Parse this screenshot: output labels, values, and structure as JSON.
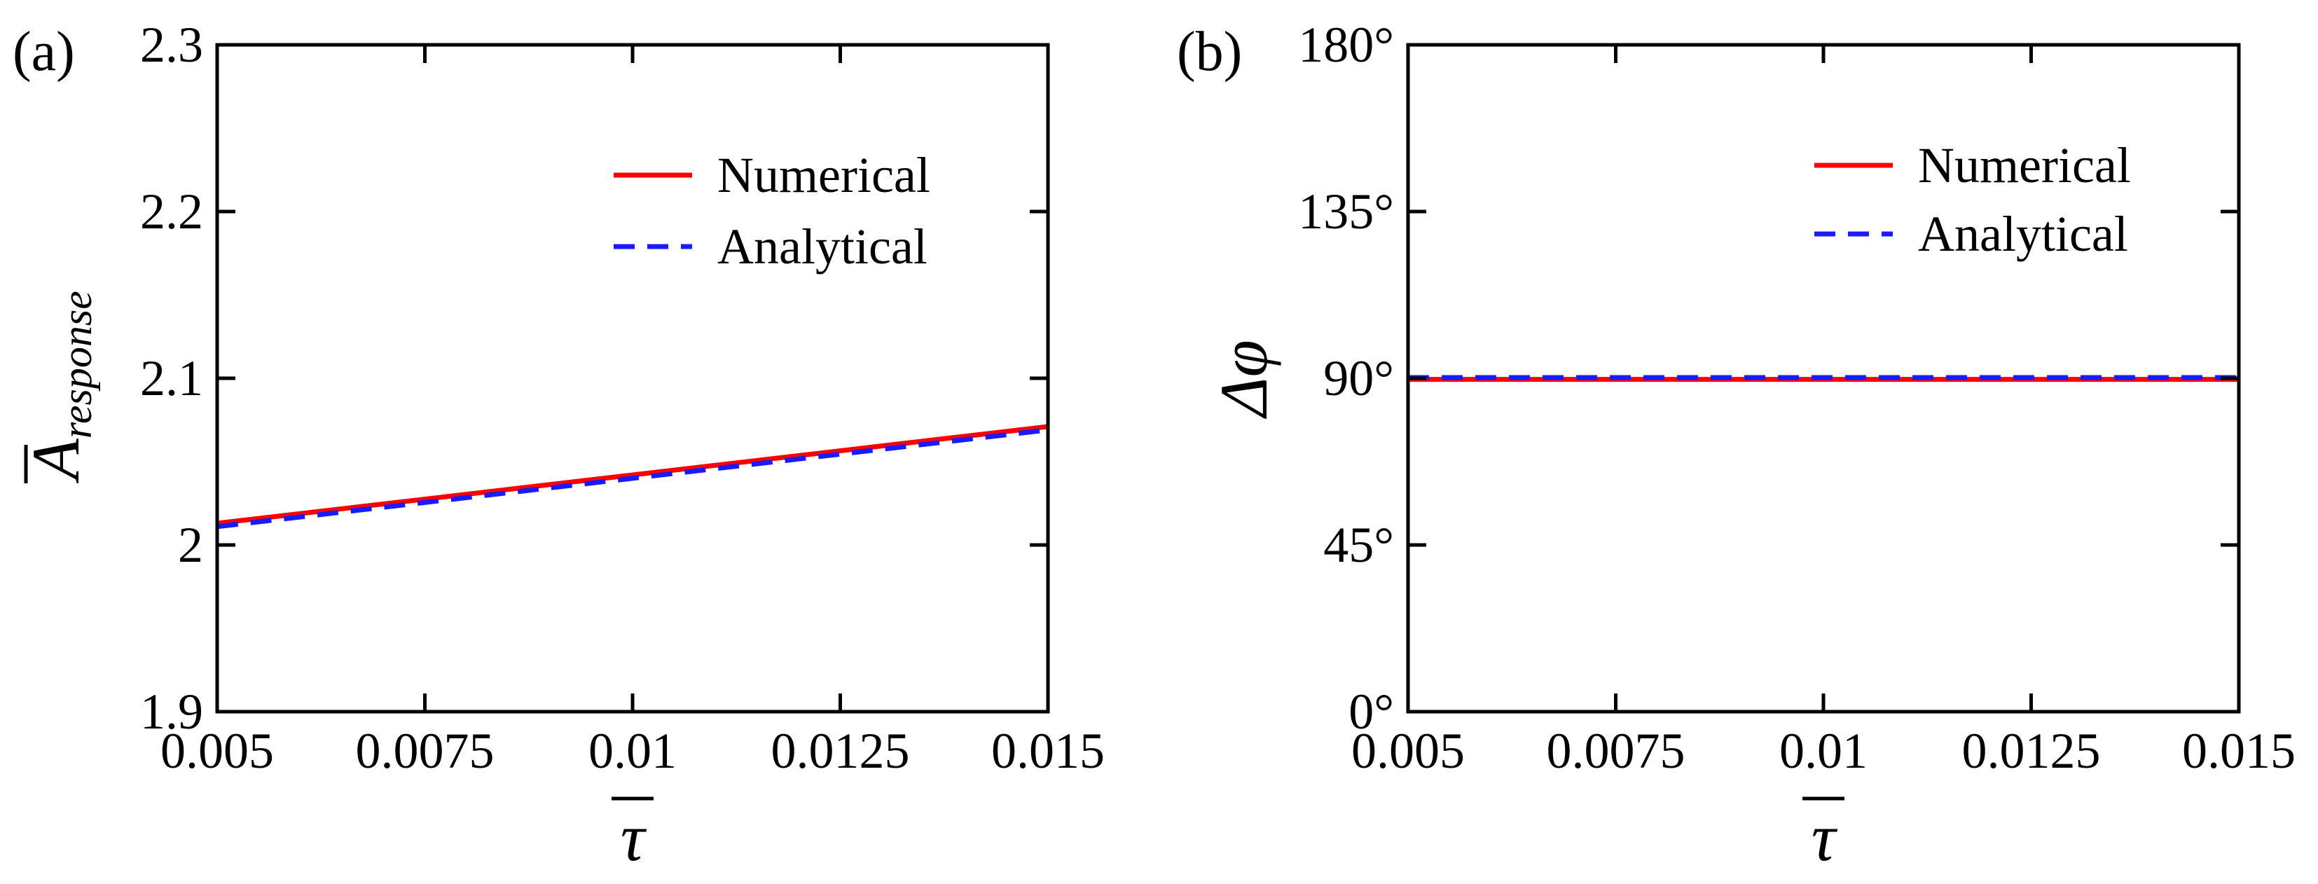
{
  "chart_data": [
    {
      "panel_label": "(a)",
      "type": "line",
      "xlabel": "τ",
      "ylabel": {
        "main": "A",
        "sub": "response"
      },
      "xlim": [
        0.005,
        0.015
      ],
      "ylim": [
        1.9,
        2.3
      ],
      "xticks": [
        0.005,
        0.0075,
        0.01,
        0.0125,
        0.015
      ],
      "xtick_labels": [
        "0.005",
        "0.0075",
        "0.01",
        "0.0125",
        "0.015"
      ],
      "yticks": [
        1.9,
        2.0,
        2.1,
        2.2,
        2.3
      ],
      "ytick_labels": [
        "1.9",
        "2",
        "2.1",
        "2.2",
        "2.3"
      ],
      "legend_position": "top-right",
      "series": [
        {
          "name": "Numerical",
          "color": "#ff0000",
          "dash": "solid",
          "x": [
            0.005,
            0.015
          ],
          "y": [
            2.013,
            2.071
          ]
        },
        {
          "name": "Analytical",
          "color": "#1a1aff",
          "dash": "dashed",
          "x": [
            0.005,
            0.015
          ],
          "y": [
            2.011,
            2.069
          ]
        }
      ]
    },
    {
      "panel_label": "(b)",
      "type": "line",
      "xlabel": "τ",
      "ylabel": {
        "main": "Δφ"
      },
      "xlim": [
        0.005,
        0.015
      ],
      "ylim": [
        0,
        180
      ],
      "xticks": [
        0.005,
        0.0075,
        0.01,
        0.0125,
        0.015
      ],
      "xtick_labels": [
        "0.005",
        "0.0075",
        "0.01",
        "0.0125",
        "0.015"
      ],
      "yticks": [
        0,
        45,
        90,
        135,
        180
      ],
      "ytick_labels": [
        "0°",
        "45°",
        "90°",
        "135°",
        "180°"
      ],
      "legend_position": "top-right",
      "series": [
        {
          "name": "Numerical",
          "color": "#ff0000",
          "dash": "solid",
          "x": [
            0.005,
            0.015
          ],
          "y": [
            89.7,
            89.7
          ]
        },
        {
          "name": "Analytical",
          "color": "#1a1aff",
          "dash": "dashed",
          "x": [
            0.005,
            0.015
          ],
          "y": [
            90.2,
            90.2
          ]
        }
      ]
    }
  ]
}
